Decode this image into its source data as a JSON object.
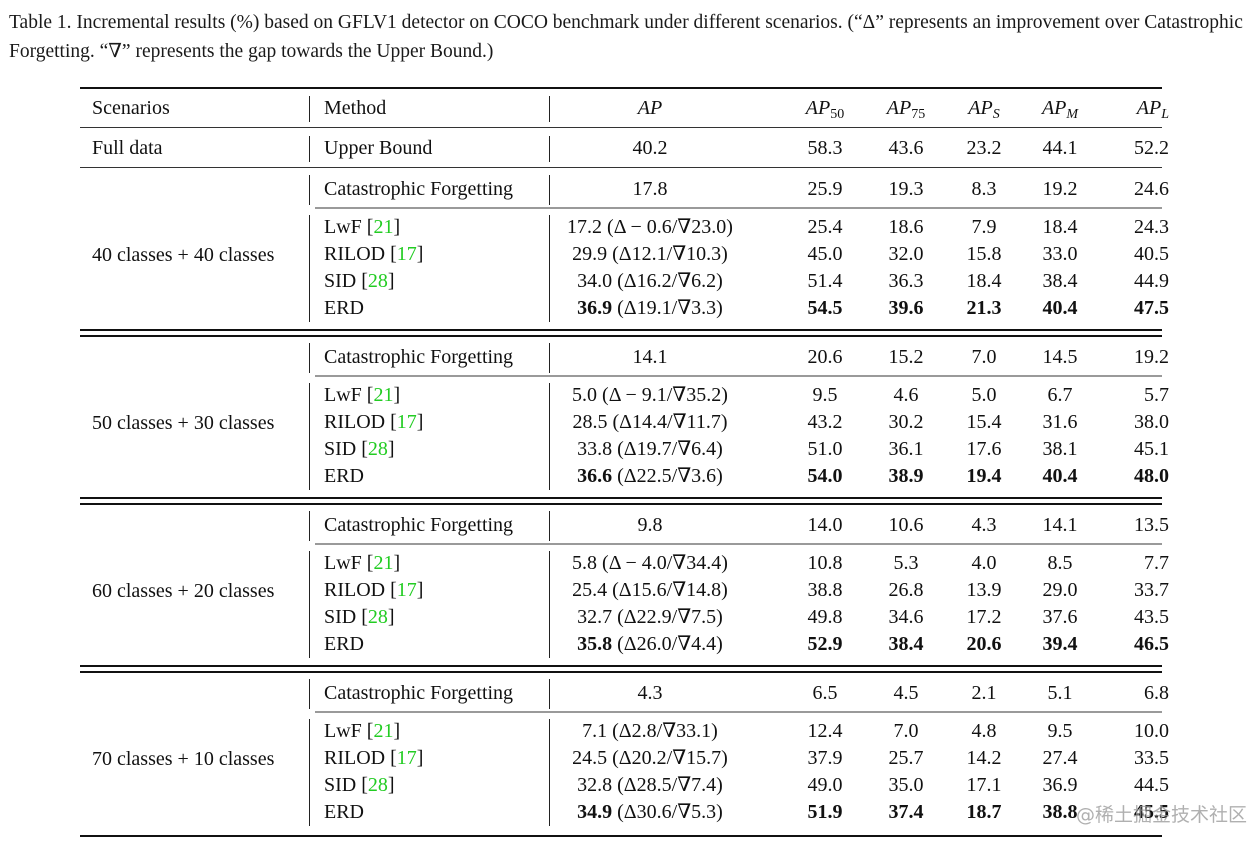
{
  "caption": "Table 1. Incremental results (%) based on GFLV1 detector on COCO benchmark under different scenarios. (“Δ” represents an improvement over Catastrophic Forgetting. “∇” represents the gap towards the Upper Bound.)",
  "header": {
    "scenarios": "Scenarios",
    "method": "Method",
    "ap": "AP",
    "ap50": {
      "base": "AP",
      "sub": "50"
    },
    "ap75": {
      "base": "AP",
      "sub": "75"
    },
    "aps": {
      "base": "AP",
      "sub": "S"
    },
    "apm": {
      "base": "AP",
      "sub": "M"
    },
    "apl": {
      "base": "AP",
      "sub": "L"
    }
  },
  "full_data": {
    "scenario": "Full data",
    "method": "Upper Bound",
    "ap": "40.2",
    "ap50": "58.3",
    "ap75": "43.6",
    "aps": "23.2",
    "apm": "44.1",
    "apl": "52.2"
  },
  "groups": [
    {
      "scenario": "40 classes + 40 classes",
      "rows": [
        {
          "method": "Catastrophic Forgetting",
          "cite": "",
          "ap": "17.8",
          "delta": "",
          "ap50": "25.9",
          "ap75": "19.3",
          "aps": "8.3",
          "apm": "19.2",
          "apl": "24.6",
          "bold": false
        },
        {
          "method": "LwF",
          "cite": "21",
          "ap": "17.2",
          "delta": " (Δ − 0.6/∇23.0)",
          "ap50": "25.4",
          "ap75": "18.6",
          "aps": "7.9",
          "apm": "18.4",
          "apl": "24.3",
          "bold": false
        },
        {
          "method": "RILOD",
          "cite": "17",
          "ap": "29.9",
          "delta": " (Δ12.1/∇10.3)",
          "ap50": "45.0",
          "ap75": "32.0",
          "aps": "15.8",
          "apm": "33.0",
          "apl": "40.5",
          "bold": false
        },
        {
          "method": "SID",
          "cite": "28",
          "ap": "34.0",
          "delta": " (Δ16.2/∇6.2)",
          "ap50": "51.4",
          "ap75": "36.3",
          "aps": "18.4",
          "apm": "38.4",
          "apl": "44.9",
          "bold": false
        },
        {
          "method": "ERD",
          "cite": "",
          "ap": "36.9",
          "delta": " (Δ19.1/∇3.3)",
          "ap50": "54.5",
          "ap75": "39.6",
          "aps": "21.3",
          "apm": "40.4",
          "apl": "47.5",
          "bold": true
        }
      ]
    },
    {
      "scenario": "50 classes + 30 classes",
      "rows": [
        {
          "method": "Catastrophic Forgetting",
          "cite": "",
          "ap": "14.1",
          "delta": "",
          "ap50": "20.6",
          "ap75": "15.2",
          "aps": "7.0",
          "apm": "14.5",
          "apl": "19.2",
          "bold": false
        },
        {
          "method": "LwF",
          "cite": "21",
          "ap": "5.0",
          "delta": " (Δ − 9.1/∇35.2)",
          "ap50": "9.5",
          "ap75": "4.6",
          "aps": "5.0",
          "apm": "6.7",
          "apl": "5.7",
          "bold": false
        },
        {
          "method": "RILOD",
          "cite": "17",
          "ap": "28.5",
          "delta": " (Δ14.4/∇11.7)",
          "ap50": "43.2",
          "ap75": "30.2",
          "aps": "15.4",
          "apm": "31.6",
          "apl": "38.0",
          "bold": false
        },
        {
          "method": "SID",
          "cite": "28",
          "ap": "33.8",
          "delta": " (Δ19.7/∇6.4)",
          "ap50": "51.0",
          "ap75": "36.1",
          "aps": "17.6",
          "apm": "38.1",
          "apl": "45.1",
          "bold": false
        },
        {
          "method": "ERD",
          "cite": "",
          "ap": "36.6",
          "delta": " (Δ22.5/∇3.6)",
          "ap50": "54.0",
          "ap75": "38.9",
          "aps": "19.4",
          "apm": "40.4",
          "apl": "48.0",
          "bold": true
        }
      ]
    },
    {
      "scenario": "60 classes + 20 classes",
      "rows": [
        {
          "method": "Catastrophic Forgetting",
          "cite": "",
          "ap": "9.8",
          "delta": "",
          "ap50": "14.0",
          "ap75": "10.6",
          "aps": "4.3",
          "apm": "14.1",
          "apl": "13.5",
          "bold": false
        },
        {
          "method": "LwF",
          "cite": "21",
          "ap": "5.8",
          "delta": " (Δ − 4.0/∇34.4)",
          "ap50": "10.8",
          "ap75": "5.3",
          "aps": "4.0",
          "apm": "8.5",
          "apl": "7.7",
          "bold": false
        },
        {
          "method": "RILOD",
          "cite": "17",
          "ap": "25.4",
          "delta": " (Δ15.6/∇14.8)",
          "ap50": "38.8",
          "ap75": "26.8",
          "aps": "13.9",
          "apm": "29.0",
          "apl": "33.7",
          "bold": false
        },
        {
          "method": "SID",
          "cite": "28",
          "ap": "32.7",
          "delta": " (Δ22.9/∇7.5)",
          "ap50": "49.8",
          "ap75": "34.6",
          "aps": "17.2",
          "apm": "37.6",
          "apl": "43.5",
          "bold": false
        },
        {
          "method": "ERD",
          "cite": "",
          "ap": "35.8",
          "delta": " (Δ26.0/∇4.4)",
          "ap50": "52.9",
          "ap75": "38.4",
          "aps": "20.6",
          "apm": "39.4",
          "apl": "46.5",
          "bold": true
        }
      ]
    },
    {
      "scenario": "70 classes + 10 classes",
      "rows": [
        {
          "method": "Catastrophic Forgetting",
          "cite": "",
          "ap": "4.3",
          "delta": "",
          "ap50": "6.5",
          "ap75": "4.5",
          "aps": "2.1",
          "apm": "5.1",
          "apl": "6.8",
          "bold": false
        },
        {
          "method": "LwF",
          "cite": "21",
          "ap": "7.1",
          "delta": " (Δ2.8/∇33.1)",
          "ap50": "12.4",
          "ap75": "7.0",
          "aps": "4.8",
          "apm": "9.5",
          "apl": "10.0",
          "bold": false
        },
        {
          "method": "RILOD",
          "cite": "17",
          "ap": "24.5",
          "delta": " (Δ20.2/∇15.7)",
          "ap50": "37.9",
          "ap75": "25.7",
          "aps": "14.2",
          "apm": "27.4",
          "apl": "33.5",
          "bold": false
        },
        {
          "method": "SID",
          "cite": "28",
          "ap": "32.8",
          "delta": " (Δ28.5/∇7.4)",
          "ap50": "49.0",
          "ap75": "35.0",
          "aps": "17.1",
          "apm": "36.9",
          "apl": "44.5",
          "bold": false
        },
        {
          "method": "ERD",
          "cite": "",
          "ap": "34.9",
          "delta": " (Δ30.6/∇5.3)",
          "ap50": "51.9",
          "ap75": "37.4",
          "aps": "18.7",
          "apm": "38.8",
          "apl": "45.5",
          "bold": true
        }
      ]
    }
  ],
  "watermark": "@稀土掘金技术社区",
  "colors": {
    "citation": "#22cc22",
    "text": "#111111",
    "rule_gray": "#9a9a9a"
  }
}
